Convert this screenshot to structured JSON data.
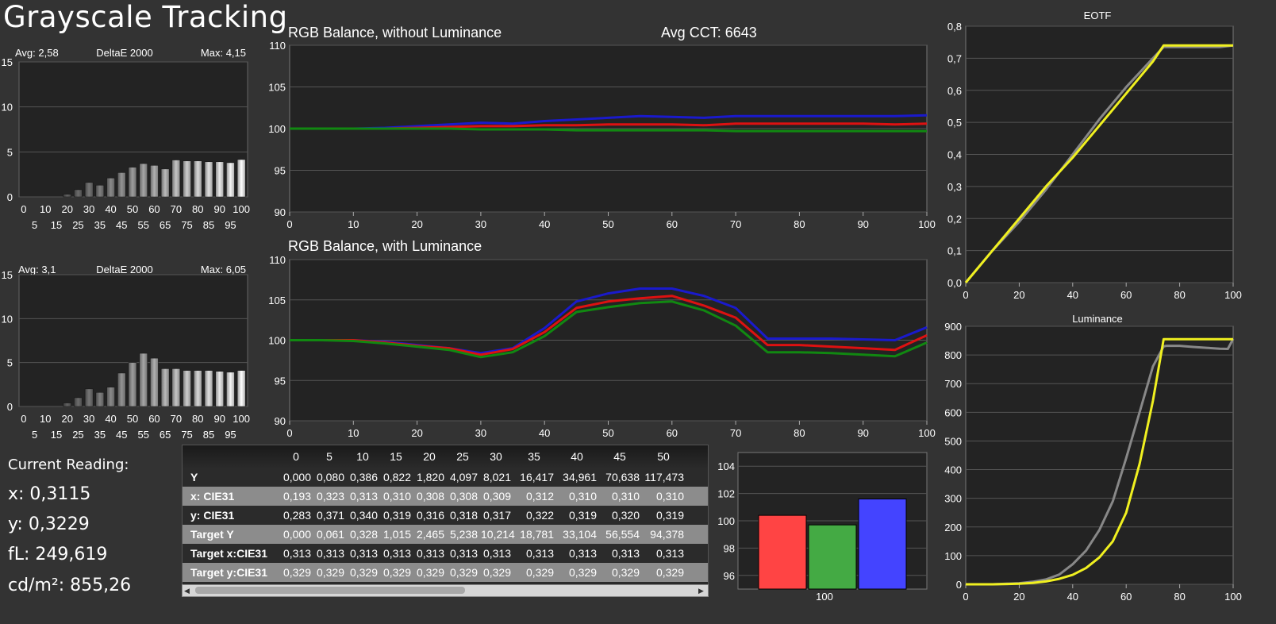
{
  "title": "Grayscale Tracking",
  "deltae_top": {
    "avg": "Avg: 2,58",
    "label": "DeltaE 2000",
    "max": "Max: 4,15"
  },
  "deltae_bottom": {
    "avg": "Avg: 3,1",
    "label": "DeltaE 2000",
    "max": "Max: 6,05"
  },
  "rgb_top": {
    "title": "RGB Balance, without Luminance",
    "cct": "Avg CCT: 6643"
  },
  "rgb_bottom": {
    "title": "RGB Balance, with Luminance"
  },
  "eotf": {
    "title": "EOTF"
  },
  "luminance": {
    "title": "Luminance"
  },
  "current": {
    "heading": "Current Reading:",
    "x": "x: 0,3115",
    "y": "y: 0,3229",
    "fl": "fL: 249,619",
    "cdm2": "cd/m²: 855,26"
  },
  "table": {
    "columns": [
      "0",
      "5",
      "10",
      "15",
      "20",
      "25",
      "30",
      "35",
      "40",
      "45",
      "50"
    ],
    "rows": [
      {
        "label": "Y",
        "values": [
          "0,000",
          "0,080",
          "0,386",
          "0,822",
          "1,820",
          "4,097",
          "8,021",
          "16,417",
          "34,961",
          "70,638",
          "117,473"
        ]
      },
      {
        "label": "x: CIE31",
        "values": [
          "0,193",
          "0,323",
          "0,313",
          "0,310",
          "0,308",
          "0,308",
          "0,309",
          "0,312",
          "0,310",
          "0,310",
          "0,310"
        ]
      },
      {
        "label": "y: CIE31",
        "values": [
          "0,283",
          "0,371",
          "0,340",
          "0,319",
          "0,316",
          "0,318",
          "0,317",
          "0,322",
          "0,319",
          "0,320",
          "0,319"
        ]
      },
      {
        "label": "Target Y",
        "values": [
          "0,000",
          "0,061",
          "0,328",
          "1,015",
          "2,465",
          "5,238",
          "10,214",
          "18,781",
          "33,104",
          "56,554",
          "94,378"
        ]
      },
      {
        "label": "Target x:CIE31",
        "values": [
          "0,313",
          "0,313",
          "0,313",
          "0,313",
          "0,313",
          "0,313",
          "0,313",
          "0,313",
          "0,313",
          "0,313",
          "0,313"
        ]
      },
      {
        "label": "Target y:CIE31",
        "values": [
          "0,329",
          "0,329",
          "0,329",
          "0,329",
          "0,329",
          "0,329",
          "0,329",
          "0,329",
          "0,329",
          "0,329",
          "0,329"
        ]
      }
    ]
  },
  "colors": {
    "red": "#dd1111",
    "green": "#118811",
    "blue": "#1a1acc",
    "yellow": "#f0f020",
    "gray": "#888888",
    "plot_bg": "#232323",
    "grid": "#555555"
  },
  "chart_data": [
    {
      "type": "bar",
      "id": "deltae_top",
      "xlabel": "",
      "ylabel": "",
      "ylim": [
        0,
        15
      ],
      "categories": [
        "0",
        "5",
        "10",
        "15",
        "20",
        "25",
        "30",
        "35",
        "40",
        "45",
        "50",
        "55",
        "60",
        "65",
        "70",
        "75",
        "80",
        "85",
        "90",
        "95",
        "100"
      ],
      "values": [
        0,
        0,
        0,
        0,
        0.3,
        0.8,
        1.6,
        1.3,
        2.1,
        2.7,
        3.3,
        3.7,
        3.5,
        3.1,
        4.1,
        4.0,
        4.0,
        3.9,
        3.9,
        3.8,
        4.15
      ]
    },
    {
      "type": "bar",
      "id": "deltae_bottom",
      "xlabel": "",
      "ylabel": "",
      "ylim": [
        0,
        15
      ],
      "categories": [
        "0",
        "5",
        "10",
        "15",
        "20",
        "25",
        "30",
        "35",
        "40",
        "45",
        "50",
        "55",
        "60",
        "65",
        "70",
        "75",
        "80",
        "85",
        "90",
        "95",
        "100"
      ],
      "values": [
        0,
        0,
        0,
        0,
        0.4,
        1.0,
        2.0,
        1.6,
        2.2,
        3.8,
        5.0,
        6.05,
        5.5,
        4.3,
        4.3,
        4.1,
        4.1,
        4.1,
        4.0,
        3.9,
        4.1
      ]
    },
    {
      "type": "line",
      "id": "rgb_top",
      "ylim": [
        90,
        110
      ],
      "xlim": [
        0,
        100
      ],
      "x": [
        0,
        5,
        10,
        15,
        20,
        25,
        30,
        35,
        40,
        45,
        50,
        55,
        60,
        65,
        70,
        75,
        80,
        85,
        90,
        95,
        100
      ],
      "series": [
        {
          "color": "blue",
          "values": [
            100,
            100,
            100,
            100.1,
            100.3,
            100.5,
            100.7,
            100.6,
            100.9,
            101.1,
            101.3,
            101.5,
            101.4,
            101.3,
            101.5,
            101.5,
            101.5,
            101.5,
            101.5,
            101.5,
            101.6
          ]
        },
        {
          "color": "red",
          "values": [
            100,
            100,
            100,
            100,
            100.1,
            100.2,
            100.3,
            100.3,
            100.4,
            100.4,
            100.5,
            100.5,
            100.5,
            100.4,
            100.6,
            100.6,
            100.6,
            100.6,
            100.6,
            100.5,
            100.6
          ]
        },
        {
          "color": "green",
          "values": [
            100,
            100,
            100,
            100,
            100,
            100,
            99.9,
            99.9,
            99.9,
            99.8,
            99.8,
            99.8,
            99.8,
            99.8,
            99.7,
            99.7,
            99.7,
            99.7,
            99.7,
            99.7,
            99.7
          ]
        }
      ]
    },
    {
      "type": "line",
      "id": "rgb_bottom",
      "ylim": [
        90,
        110
      ],
      "xlim": [
        0,
        100
      ],
      "x": [
        0,
        5,
        10,
        15,
        20,
        25,
        30,
        35,
        40,
        45,
        50,
        55,
        60,
        65,
        70,
        75,
        80,
        85,
        90,
        95,
        100
      ],
      "series": [
        {
          "color": "blue",
          "values": [
            100,
            100,
            100,
            99.8,
            99.4,
            99,
            98.4,
            99,
            101.5,
            104.8,
            105.8,
            106.4,
            106.4,
            105.5,
            104,
            100.2,
            100.2,
            100.2,
            100.1,
            100,
            101.6
          ]
        },
        {
          "color": "red",
          "values": [
            100,
            100,
            100,
            99.7,
            99.3,
            99,
            98.2,
            98.9,
            101,
            104,
            104.8,
            105.2,
            105.5,
            104.3,
            102.8,
            99.4,
            99.4,
            99.2,
            99,
            98.8,
            100.6
          ]
        },
        {
          "color": "green",
          "values": [
            100,
            100,
            99.9,
            99.6,
            99.2,
            98.8,
            97.9,
            98.5,
            100.5,
            103.5,
            104.1,
            104.6,
            104.8,
            103.7,
            101.8,
            98.5,
            98.5,
            98.4,
            98.2,
            98,
            99.7
          ]
        }
      ]
    },
    {
      "type": "line",
      "id": "eotf",
      "ylim": [
        0,
        0.8
      ],
      "xlim": [
        0,
        100
      ],
      "x": [
        0,
        10,
        20,
        30,
        40,
        50,
        60,
        70,
        74,
        80,
        90,
        95,
        100
      ],
      "series": [
        {
          "color": "gray",
          "values": [
            0,
            0.1,
            0.19,
            0.29,
            0.4,
            0.51,
            0.61,
            0.7,
            0.735,
            0.735,
            0.735,
            0.735,
            0.74
          ]
        },
        {
          "color": "yellow",
          "values": [
            0,
            0.1,
            0.2,
            0.3,
            0.39,
            0.49,
            0.59,
            0.69,
            0.74,
            0.74,
            0.74,
            0.74,
            0.74
          ]
        }
      ]
    },
    {
      "type": "line",
      "id": "luminance",
      "ylim": [
        0,
        900
      ],
      "xlim": [
        0,
        100
      ],
      "x": [
        0,
        10,
        20,
        25,
        30,
        35,
        40,
        45,
        50,
        55,
        60,
        65,
        70,
        74,
        75,
        80,
        85,
        90,
        95,
        98,
        100
      ],
      "series": [
        {
          "color": "gray",
          "values": [
            0,
            0,
            4,
            9,
            17,
            34,
            70,
            118,
            190,
            290,
            440,
            600,
            760,
            830,
            832,
            832,
            828,
            825,
            822,
            821,
            856
          ]
        },
        {
          "color": "yellow",
          "values": [
            0,
            0,
            2,
            5,
            10,
            19,
            33,
            57,
            94,
            150,
            250,
            420,
            640,
            855,
            855,
            855,
            855,
            855,
            855,
            855,
            855
          ]
        }
      ]
    },
    {
      "type": "bar",
      "id": "rgb_bars",
      "ylim": [
        95,
        105
      ],
      "categories": [
        "100"
      ],
      "series": [
        {
          "color": "red",
          "values": [
            100.4
          ]
        },
        {
          "color": "green",
          "values": [
            99.7
          ]
        },
        {
          "color": "blue",
          "values": [
            101.6
          ]
        }
      ]
    }
  ]
}
